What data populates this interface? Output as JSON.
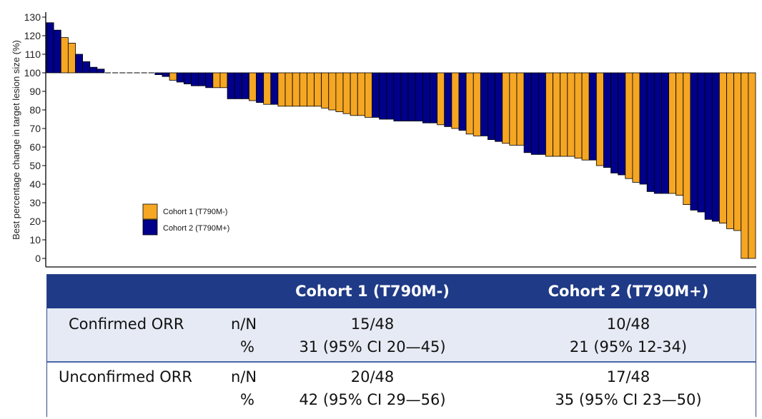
{
  "chart_data": {
    "type": "bar",
    "ylabel": "Best percentage change in target lesion size (%)",
    "yticks": [
      "0",
      "10",
      "20",
      "30",
      "40",
      "50",
      "60",
      "70",
      "80",
      "90",
      "100",
      "110",
      "120",
      "130"
    ],
    "ylim": [
      -4,
      131
    ],
    "baseline": 100,
    "legend": [
      {
        "label": "Cohort 1 (T790M-)",
        "color": "#f5a623"
      },
      {
        "label": "Cohort 2 (T790M+)",
        "color": "#00008b"
      }
    ],
    "legend_position": "lower-left",
    "values": [
      127,
      123,
      119,
      116,
      110,
      106,
      103,
      102,
      100,
      100,
      100,
      100,
      100,
      100,
      100,
      99,
      98,
      96,
      95,
      94,
      93,
      93,
      92,
      92,
      92,
      86,
      86,
      86,
      85,
      84,
      83,
      83,
      82,
      82,
      82,
      82,
      82,
      82,
      81,
      80,
      79,
      78,
      77,
      77,
      76,
      76,
      75,
      75,
      74,
      74,
      74,
      74,
      73,
      73,
      72,
      71,
      70,
      69,
      67,
      66,
      66,
      64,
      63,
      62,
      61,
      61,
      57,
      56,
      56,
      55,
      55,
      55,
      55,
      54,
      53,
      53,
      50,
      49,
      46,
      45,
      43,
      41,
      40,
      36,
      35,
      35,
      35,
      34,
      29,
      26,
      25,
      21,
      20,
      19,
      16,
      15,
      0,
      0
    ],
    "cohorts": [
      2,
      2,
      1,
      1,
      2,
      2,
      2,
      2,
      0,
      0,
      0,
      0,
      0,
      0,
      0,
      2,
      2,
      1,
      2,
      2,
      2,
      2,
      2,
      1,
      1,
      2,
      2,
      2,
      1,
      2,
      1,
      2,
      1,
      1,
      1,
      1,
      1,
      1,
      1,
      1,
      1,
      1,
      1,
      1,
      1,
      2,
      2,
      2,
      2,
      2,
      2,
      2,
      2,
      2,
      1,
      2,
      1,
      2,
      1,
      1,
      2,
      2,
      2,
      1,
      1,
      1,
      2,
      2,
      2,
      1,
      1,
      1,
      1,
      1,
      1,
      2,
      1,
      2,
      2,
      2,
      1,
      1,
      2,
      2,
      2,
      2,
      1,
      1,
      1,
      2,
      2,
      2,
      2,
      1,
      1,
      1,
      1,
      1
    ]
  },
  "table": {
    "headers": [
      "Cohort 1 (T790M-)",
      "Cohort 2 (T790M+)"
    ],
    "rows": [
      {
        "label": "Confirmed ORR",
        "k1": "n/N",
        "k2": "%",
        "c1a": "15/48",
        "c1b": "31 (95% CI 20—45)",
        "c2a": "10/48",
        "c2b": "21 (95% 12-34)"
      },
      {
        "label": "Unconfirmed ORR",
        "k1": "n/N",
        "k2": "%",
        "c1a": "20/48",
        "c1b": "42 (95% CI 29—56)",
        "c2a": "17/48",
        "c2b": "35 (95% CI 23—50)"
      }
    ]
  }
}
